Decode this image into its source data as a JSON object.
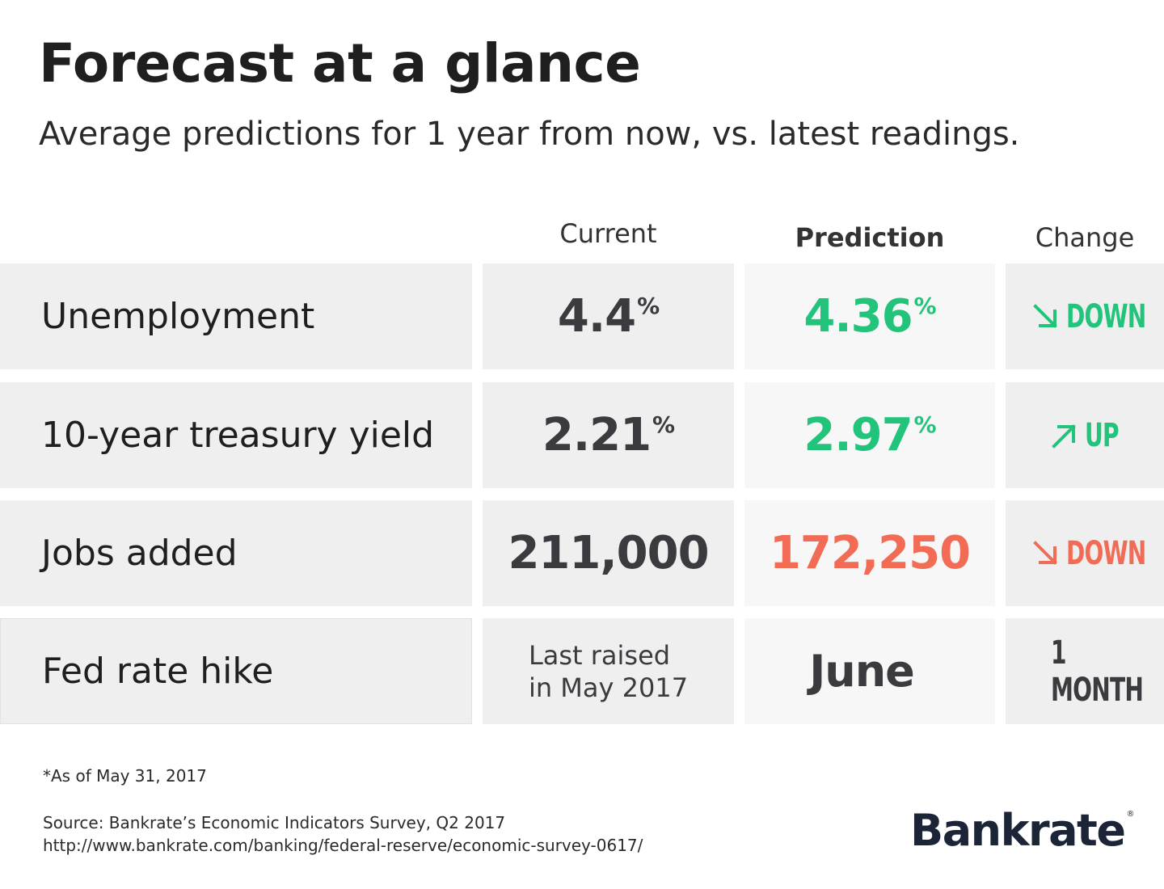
{
  "title": "Forecast at a glance",
  "subtitle": "Average predictions for 1 year from now, vs. latest readings.",
  "columns": {
    "current": "Current",
    "prediction": "Prediction",
    "change": "Change"
  },
  "colors": {
    "green": "#22c47b",
    "red": "#f26b55",
    "neutral": "#3a3a3f",
    "brand": "#1c2537"
  },
  "chart_data": {
    "type": "table",
    "title": "Forecast at a glance",
    "subtitle": "Average predictions for 1 year from now, vs. latest readings.",
    "columns": [
      "Current",
      "Prediction",
      "Change"
    ],
    "rows": [
      {
        "label": "Unemployment",
        "current": "4.4",
        "current_unit": "%",
        "prediction": "4.36",
        "prediction_unit": "%",
        "change": "DOWN",
        "change_icon": "arrow-down-right-icon",
        "tone": "green"
      },
      {
        "label": "10-year treasury yield",
        "current": "2.21",
        "current_unit": "%",
        "prediction": "2.97",
        "prediction_unit": "%",
        "change": "UP",
        "change_icon": "arrow-up-right-icon",
        "tone": "green"
      },
      {
        "label": "Jobs added",
        "current": "211,000",
        "current_unit": "",
        "prediction": "172,250",
        "prediction_unit": "",
        "change": "DOWN",
        "change_icon": "arrow-down-right-icon",
        "tone": "red"
      },
      {
        "label": "Fed rate hike",
        "current_line1": "Last raised",
        "current_line2": "in May 2017",
        "prediction": "June",
        "change": "1 MONTH",
        "tone": "neutral"
      }
    ]
  },
  "footnote": "*As of May 31, 2017",
  "source_line1": "Source: Bankrate’s Economic Indicators Survey, Q2 2017",
  "source_line2": "http://www.bankrate.com/banking/federal-reserve/economic-survey-0617/",
  "brand": "Bankrate",
  "brand_mark": "®"
}
